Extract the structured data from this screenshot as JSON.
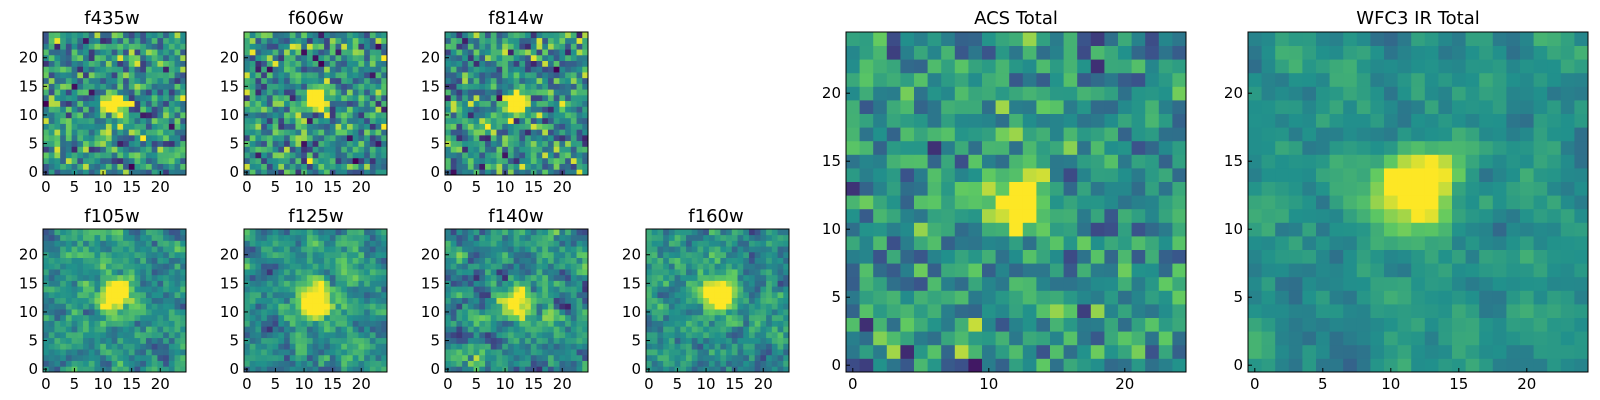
{
  "chart_data": {
    "type": "heatmap",
    "colormap": [
      "#440154",
      "#3b528b",
      "#21918c",
      "#5ec962",
      "#fde725"
    ],
    "panels": [
      {
        "title": "f435w",
        "grid": [
          25,
          25
        ],
        "xticks": [
          0,
          5,
          10,
          15,
          20
        ],
        "yticks": [
          0,
          5,
          10,
          15,
          20
        ],
        "source": {
          "x": 12,
          "y": 12,
          "sigma": 1.2,
          "amp": 1.0
        },
        "noise": 0.55,
        "smooth": 0.0,
        "seed": 11
      },
      {
        "title": "f606w",
        "grid": [
          25,
          25
        ],
        "xticks": [
          0,
          5,
          10,
          15,
          20
        ],
        "yticks": [
          0,
          5,
          10,
          15,
          20
        ],
        "source": {
          "x": 12,
          "y": 13,
          "sigma": 1.2,
          "amp": 1.0
        },
        "noise": 0.55,
        "smooth": 0.0,
        "seed": 23
      },
      {
        "title": "f814w",
        "grid": [
          25,
          25
        ],
        "xticks": [
          0,
          5,
          10,
          15,
          20
        ],
        "yticks": [
          0,
          5,
          10,
          15,
          20
        ],
        "source": {
          "x": 12,
          "y": 12,
          "sigma": 1.3,
          "amp": 1.0
        },
        "noise": 0.55,
        "smooth": 0.0,
        "seed": 37
      },
      {
        "title": "f105w",
        "grid": [
          25,
          25
        ],
        "xticks": [
          0,
          5,
          10,
          15,
          20
        ],
        "yticks": [
          0,
          5,
          10,
          15,
          20
        ],
        "source": {
          "x": 12,
          "y": 13,
          "sigma": 1.8,
          "amp": 1.0
        },
        "noise": 0.45,
        "smooth": 0.5,
        "seed": 41
      },
      {
        "title": "f125w",
        "grid": [
          25,
          25
        ],
        "xticks": [
          0,
          5,
          10,
          15,
          20
        ],
        "yticks": [
          0,
          5,
          10,
          15,
          20
        ],
        "source": {
          "x": 12,
          "y": 12,
          "sigma": 2.0,
          "amp": 1.0
        },
        "noise": 0.45,
        "smooth": 0.5,
        "seed": 53
      },
      {
        "title": "f140w",
        "grid": [
          25,
          25
        ],
        "xticks": [
          0,
          5,
          10,
          15,
          20
        ],
        "yticks": [
          0,
          5,
          10,
          15,
          20
        ],
        "source": {
          "x": 12,
          "y": 12,
          "sigma": 1.8,
          "amp": 0.8
        },
        "noise": 0.55,
        "smooth": 0.5,
        "seed": 67
      },
      {
        "title": "f160w",
        "grid": [
          25,
          25
        ],
        "xticks": [
          0,
          5,
          10,
          15,
          20
        ],
        "yticks": [
          0,
          5,
          10,
          15,
          20
        ],
        "source": {
          "x": 12,
          "y": 13,
          "sigma": 1.8,
          "amp": 1.0
        },
        "noise": 0.45,
        "smooth": 0.5,
        "seed": 79
      },
      {
        "title": "ACS Total",
        "grid": [
          25,
          25
        ],
        "xticks": [
          0,
          10,
          20
        ],
        "yticks": [
          0,
          5,
          10,
          15,
          20
        ],
        "source": {
          "x": 12,
          "y": 12,
          "sigma": 1.3,
          "amp": 1.0
        },
        "noise": 0.4,
        "smooth": 0.0,
        "seed": 97
      },
      {
        "title": "WFC3 IR Total",
        "grid": [
          25,
          25
        ],
        "xticks": [
          0,
          5,
          10,
          15,
          20
        ],
        "yticks": [
          0,
          5,
          10,
          15,
          20
        ],
        "source": {
          "x": 12,
          "y": 13,
          "sigma": 1.8,
          "amp": 1.0
        },
        "noise": 0.3,
        "smooth": 0.6,
        "seed": 113
      }
    ]
  }
}
